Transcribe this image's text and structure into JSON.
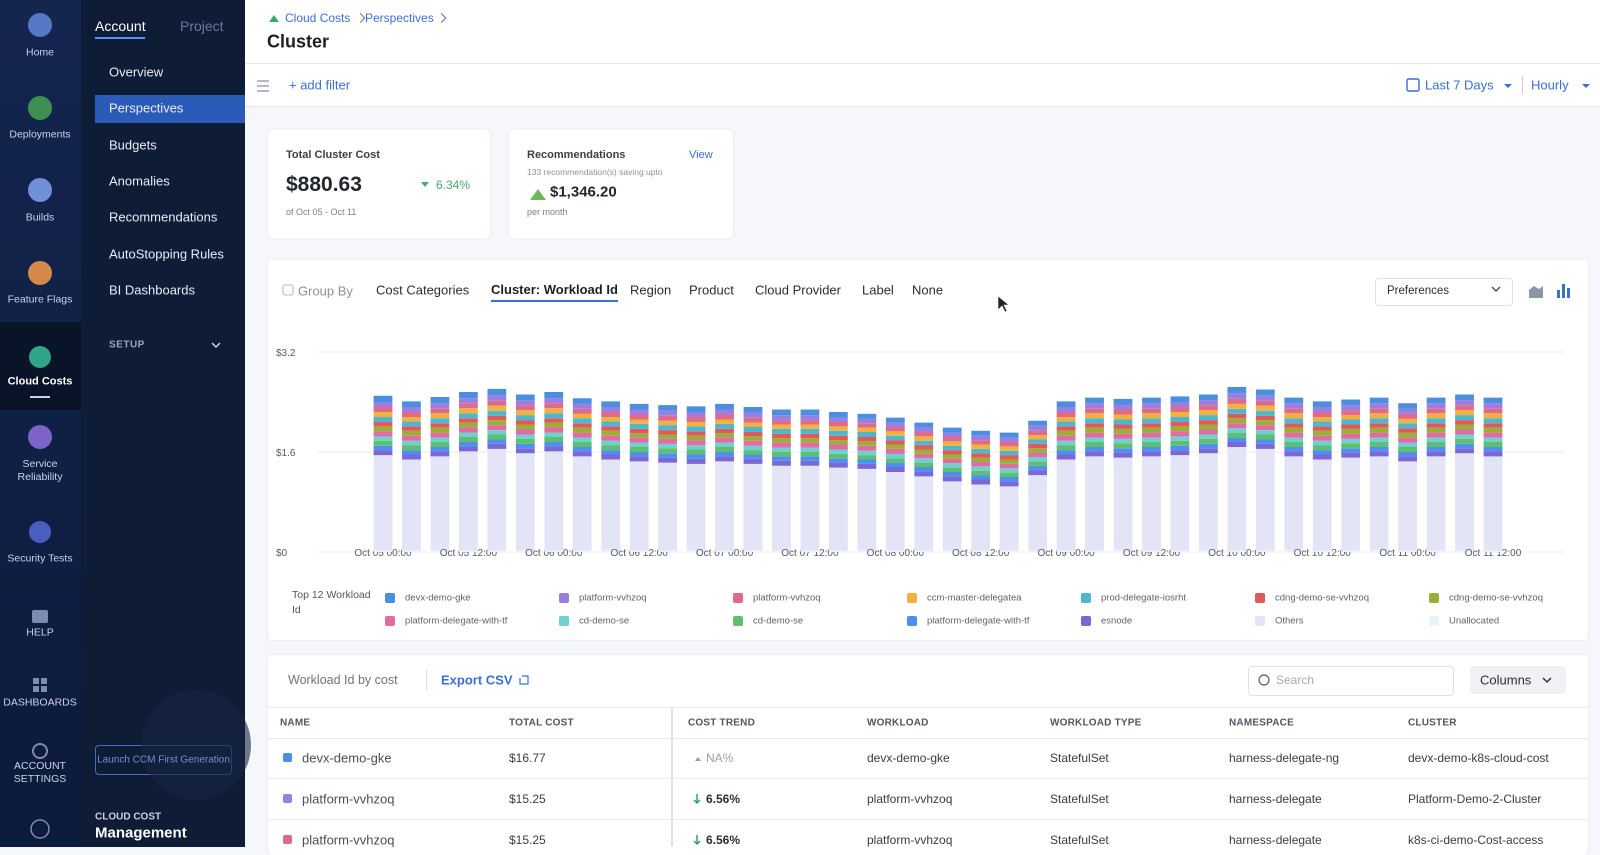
{
  "rail": {
    "items": [
      "Home",
      "Deployments",
      "Builds",
      "Feature Flags",
      "Cloud Costs",
      "Service Reliability",
      "Security Tests",
      "HELP",
      "DASHBOARDS",
      "ACCOUNT SETTINGS"
    ]
  },
  "subnav": {
    "tabs": [
      "Account",
      "Project"
    ],
    "items": [
      "Overview",
      "Perspectives",
      "Budgets",
      "Anomalies",
      "Recommendations",
      "AutoStopping Rules",
      "BI Dashboards"
    ],
    "setup": "SETUP",
    "launch_button": "Launch CCM First Generation",
    "footer_kicker": "CLOUD COST",
    "footer_title": "Management"
  },
  "header": {
    "breadcrumbs": [
      "Cloud Costs",
      "Perspectives"
    ],
    "title": "Cluster"
  },
  "toolbar": {
    "add_filter": "+ add filter",
    "time_range": "Last 7 Days",
    "granularity": "Hourly"
  },
  "cards": {
    "total": {
      "label": "Total Cluster Cost",
      "value": "$880.63",
      "trend": "6.34%",
      "period": "of Oct 05 - Oct 11"
    },
    "recommendations": {
      "label": "Recommendations",
      "link": "View",
      "subtitle": "133 recommendation(s) saving upto",
      "value": "$1,346.20",
      "period": "per month"
    }
  },
  "group_by": {
    "label": "Group By",
    "options": [
      "Cost Categories",
      "Cluster: Workload Id",
      "Region",
      "Product",
      "Cloud Provider",
      "Label",
      "None"
    ],
    "preferences": "Preferences"
  },
  "chart_data": {
    "type": "bar",
    "stacked": true,
    "legend_title": "Top 12 Workload Id",
    "ylim": [
      0,
      3.2
    ],
    "yticks": [
      {
        "value": 0,
        "label": "$0"
      },
      {
        "value": 1.6,
        "label": "$1.6"
      },
      {
        "value": 3.2,
        "label": "$3.2"
      }
    ],
    "grid": true,
    "categories": [
      "Oct 05 00:00",
      null,
      null,
      "Oct 05 12:00",
      null,
      null,
      "Oct 06 00:00",
      null,
      null,
      "Oct 06 12:00",
      null,
      null,
      "Oct 07 00:00",
      null,
      null,
      "Oct 07 12:00",
      null,
      null,
      "Oct 08 00:00",
      null,
      null,
      "Oct 08 12:00",
      null,
      null,
      "Oct 09 00:00",
      null,
      null,
      "Oct 09 12:00",
      null,
      null,
      "Oct 10 00:00",
      null,
      null,
      "Oct 10 12:00",
      null,
      null,
      "Oct 11 00:00",
      null,
      null,
      "Oct 11 12:00"
    ],
    "series": [
      {
        "name": "devx-demo-gke",
        "color": "#4a8fe0",
        "values": [
          0.1,
          0.09,
          0.1,
          0.1,
          0.1,
          0.09,
          0.1,
          0.09,
          0.09,
          0.09,
          0.09,
          0.09,
          0.09,
          0.09,
          0.09,
          0.09,
          0.09,
          0.08,
          0.08,
          0.08,
          0.08,
          0.08,
          0.08,
          0.08,
          0.09,
          0.09,
          0.09,
          0.09,
          0.09,
          0.09,
          0.1,
          0.1,
          0.09,
          0.09,
          0.09,
          0.09,
          0.09,
          0.09,
          0.09,
          0.09
        ]
      },
      {
        "name": "platform-vvhzoq",
        "color": "#9b7fe0",
        "values": [
          0.08,
          0.08,
          0.08,
          0.08,
          0.09,
          0.08,
          0.08,
          0.08,
          0.08,
          0.08,
          0.08,
          0.08,
          0.08,
          0.08,
          0.08,
          0.08,
          0.07,
          0.07,
          0.07,
          0.07,
          0.07,
          0.07,
          0.07,
          0.08,
          0.08,
          0.08,
          0.08,
          0.08,
          0.08,
          0.08,
          0.09,
          0.08,
          0.08,
          0.08,
          0.08,
          0.08,
          0.08,
          0.08,
          0.08,
          0.08
        ]
      },
      {
        "name": "platform-vvhzoq",
        "color": "#e06a8a",
        "values": [
          0.08,
          0.08,
          0.08,
          0.08,
          0.08,
          0.08,
          0.08,
          0.08,
          0.08,
          0.08,
          0.08,
          0.08,
          0.08,
          0.08,
          0.07,
          0.07,
          0.07,
          0.07,
          0.07,
          0.07,
          0.07,
          0.07,
          0.07,
          0.07,
          0.08,
          0.08,
          0.08,
          0.08,
          0.08,
          0.08,
          0.08,
          0.08,
          0.08,
          0.08,
          0.08,
          0.08,
          0.08,
          0.08,
          0.08,
          0.08
        ]
      },
      {
        "name": "ccm-master-delegatea",
        "color": "#f2b13d",
        "values": [
          0.08,
          0.07,
          0.08,
          0.08,
          0.08,
          0.08,
          0.08,
          0.07,
          0.07,
          0.07,
          0.07,
          0.07,
          0.07,
          0.07,
          0.07,
          0.07,
          0.07,
          0.07,
          0.07,
          0.07,
          0.07,
          0.07,
          0.07,
          0.07,
          0.07,
          0.08,
          0.08,
          0.08,
          0.08,
          0.08,
          0.08,
          0.08,
          0.08,
          0.07,
          0.07,
          0.08,
          0.07,
          0.08,
          0.08,
          0.08
        ]
      },
      {
        "name": "prod-delegate-iosrht",
        "color": "#4fb6cf",
        "values": [
          0.08,
          0.08,
          0.08,
          0.08,
          0.08,
          0.08,
          0.08,
          0.08,
          0.08,
          0.08,
          0.08,
          0.08,
          0.08,
          0.08,
          0.08,
          0.08,
          0.08,
          0.08,
          0.07,
          0.07,
          0.07,
          0.07,
          0.07,
          0.07,
          0.08,
          0.08,
          0.08,
          0.08,
          0.08,
          0.08,
          0.08,
          0.08,
          0.08,
          0.08,
          0.08,
          0.08,
          0.08,
          0.08,
          0.08,
          0.08
        ]
      },
      {
        "name": "cdng-demo-se-vvhzoq",
        "color": "#e05a5a",
        "values": [
          0.07,
          0.07,
          0.07,
          0.07,
          0.07,
          0.07,
          0.07,
          0.07,
          0.07,
          0.07,
          0.07,
          0.07,
          0.07,
          0.07,
          0.07,
          0.07,
          0.07,
          0.07,
          0.07,
          0.07,
          0.07,
          0.07,
          0.07,
          0.07,
          0.07,
          0.07,
          0.07,
          0.07,
          0.07,
          0.07,
          0.07,
          0.07,
          0.07,
          0.07,
          0.07,
          0.07,
          0.07,
          0.07,
          0.07,
          0.07
        ]
      },
      {
        "name": "cdng-demo-se-vvhzoq",
        "color": "#9cae3a",
        "values": [
          0.08,
          0.08,
          0.08,
          0.08,
          0.08,
          0.08,
          0.08,
          0.08,
          0.08,
          0.07,
          0.07,
          0.07,
          0.07,
          0.07,
          0.07,
          0.07,
          0.07,
          0.07,
          0.07,
          0.07,
          0.07,
          0.07,
          0.07,
          0.07,
          0.08,
          0.08,
          0.08,
          0.08,
          0.08,
          0.08,
          0.08,
          0.08,
          0.08,
          0.08,
          0.08,
          0.08,
          0.08,
          0.08,
          0.08,
          0.08
        ]
      },
      {
        "name": "platform-delegate-with-tf",
        "color": "#e36ba4",
        "values": [
          0.08,
          0.08,
          0.08,
          0.08,
          0.08,
          0.08,
          0.08,
          0.08,
          0.08,
          0.08,
          0.08,
          0.08,
          0.08,
          0.08,
          0.08,
          0.08,
          0.08,
          0.08,
          0.08,
          0.07,
          0.07,
          0.07,
          0.07,
          0.07,
          0.08,
          0.08,
          0.08,
          0.08,
          0.08,
          0.08,
          0.08,
          0.08,
          0.08,
          0.08,
          0.08,
          0.08,
          0.08,
          0.08,
          0.08,
          0.08
        ]
      },
      {
        "name": "cd-demo-se",
        "color": "#6fd0d0",
        "values": [
          0.07,
          0.07,
          0.07,
          0.07,
          0.07,
          0.07,
          0.07,
          0.07,
          0.07,
          0.07,
          0.07,
          0.07,
          0.07,
          0.07,
          0.07,
          0.07,
          0.07,
          0.07,
          0.07,
          0.07,
          0.07,
          0.07,
          0.07,
          0.07,
          0.07,
          0.07,
          0.07,
          0.07,
          0.07,
          0.07,
          0.07,
          0.07,
          0.07,
          0.07,
          0.07,
          0.07,
          0.07,
          0.07,
          0.07,
          0.07
        ]
      },
      {
        "name": "cd-demo-se",
        "color": "#5fbf6f",
        "values": [
          0.08,
          0.08,
          0.08,
          0.08,
          0.08,
          0.08,
          0.08,
          0.08,
          0.08,
          0.08,
          0.08,
          0.08,
          0.08,
          0.07,
          0.07,
          0.07,
          0.07,
          0.07,
          0.07,
          0.07,
          0.07,
          0.07,
          0.07,
          0.07,
          0.08,
          0.08,
          0.08,
          0.08,
          0.08,
          0.08,
          0.08,
          0.08,
          0.08,
          0.08,
          0.08,
          0.08,
          0.08,
          0.08,
          0.08,
          0.08
        ]
      },
      {
        "name": "platform-delegate-with-tf",
        "color": "#4e90f0",
        "values": [
          0.07,
          0.07,
          0.07,
          0.07,
          0.07,
          0.07,
          0.07,
          0.07,
          0.07,
          0.07,
          0.07,
          0.07,
          0.07,
          0.07,
          0.07,
          0.07,
          0.07,
          0.07,
          0.07,
          0.07,
          0.07,
          0.07,
          0.07,
          0.07,
          0.07,
          0.07,
          0.07,
          0.07,
          0.07,
          0.07,
          0.07,
          0.07,
          0.07,
          0.07,
          0.07,
          0.07,
          0.07,
          0.07,
          0.07,
          0.07
        ]
      },
      {
        "name": "esnode",
        "color": "#7b67d6",
        "values": [
          0.08,
          0.08,
          0.08,
          0.08,
          0.08,
          0.08,
          0.08,
          0.08,
          0.08,
          0.08,
          0.08,
          0.08,
          0.08,
          0.08,
          0.08,
          0.08,
          0.08,
          0.08,
          0.08,
          0.08,
          0.08,
          0.08,
          0.08,
          0.08,
          0.08,
          0.08,
          0.08,
          0.08,
          0.08,
          0.08,
          0.08,
          0.08,
          0.08,
          0.08,
          0.08,
          0.08,
          0.08,
          0.08,
          0.08,
          0.08
        ]
      },
      {
        "name": "Others",
        "color": "#e3e5f6",
        "values": [
          1.52,
          1.45,
          1.5,
          1.58,
          1.62,
          1.55,
          1.58,
          1.5,
          1.45,
          1.42,
          1.4,
          1.38,
          1.42,
          1.38,
          1.35,
          1.35,
          1.32,
          1.3,
          1.25,
          1.18,
          1.1,
          1.05,
          1.02,
          1.2,
          1.45,
          1.5,
          1.48,
          1.5,
          1.52,
          1.55,
          1.65,
          1.62,
          1.5,
          1.45,
          1.48,
          1.5,
          1.42,
          1.5,
          1.55,
          1.5
        ]
      },
      {
        "name": "Unallocated",
        "color": "#eaf3f7",
        "values": [
          0.03,
          0.03,
          0.03,
          0.03,
          0.03,
          0.03,
          0.03,
          0.03,
          0.03,
          0.03,
          0.03,
          0.03,
          0.03,
          0.03,
          0.03,
          0.03,
          0.03,
          0.03,
          0.03,
          0.03,
          0.03,
          0.03,
          0.03,
          0.03,
          0.03,
          0.03,
          0.03,
          0.03,
          0.03,
          0.03,
          0.03,
          0.03,
          0.03,
          0.03,
          0.03,
          0.03,
          0.03,
          0.03,
          0.03,
          0.03
        ]
      }
    ]
  },
  "table": {
    "title": "Workload Id by cost",
    "export": "Export CSV",
    "search_placeholder": "Search",
    "columns_button": "Columns",
    "headers": [
      "NAME",
      "TOTAL COST",
      "COST TREND",
      "WORKLOAD",
      "WORKLOAD TYPE",
      "NAMESPACE",
      "CLUSTER"
    ],
    "rows": [
      [
        "devx-demo-gke",
        "$16.77",
        "NA%",
        "devx-demo-gke",
        "StatefulSet",
        "harness-delegate-ng",
        "devx-demo-k8s-cloud-cost"
      ],
      [
        "platform-vvhzoq",
        "$15.25",
        "6.56%",
        "platform-vvhzoq",
        "StatefulSet",
        "harness-delegate",
        "Platform-Demo-2-Cluster"
      ],
      [
        "platform-vvhzoq",
        "$15.25",
        "6.56%",
        "platform-vvhzoq",
        "StatefulSet",
        "harness-delegate",
        "k8s-ci-demo-Cost-access"
      ]
    ]
  }
}
